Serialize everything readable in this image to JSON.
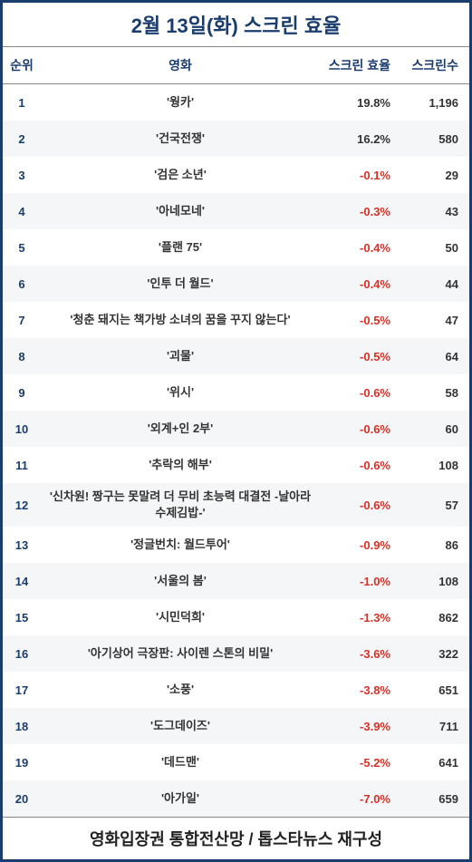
{
  "title": "2월 13일(화) 스크린 효율",
  "columns": {
    "rank": "순위",
    "movie": "영화",
    "efficiency": "스크린 효율",
    "screens": "스크린수"
  },
  "footer": "영화입장권 통합전산망 / 톱스타뉴스 재구성",
  "colors": {
    "border": "#1a3d6d",
    "header_text": "#1a3d6d",
    "negative": "#d93025",
    "positive": "#333333",
    "stripe": "#f5f6f7",
    "background": "#ffffff"
  },
  "column_widths": {
    "rank": 42,
    "efficiency": 90,
    "screens": 75
  },
  "rows": [
    {
      "rank": "1",
      "movie": "'웡카'",
      "efficiency": "19.8%",
      "screens": "1,196",
      "negative": false
    },
    {
      "rank": "2",
      "movie": "'건국전쟁'",
      "efficiency": "16.2%",
      "screens": "580",
      "negative": false
    },
    {
      "rank": "3",
      "movie": "'검은 소년'",
      "efficiency": "-0.1%",
      "screens": "29",
      "negative": true
    },
    {
      "rank": "4",
      "movie": "'아네모네'",
      "efficiency": "-0.3%",
      "screens": "43",
      "negative": true
    },
    {
      "rank": "5",
      "movie": "'플랜 75'",
      "efficiency": "-0.4%",
      "screens": "50",
      "negative": true
    },
    {
      "rank": "6",
      "movie": "'인투 더 월드'",
      "efficiency": "-0.4%",
      "screens": "44",
      "negative": true
    },
    {
      "rank": "7",
      "movie": "'청춘 돼지는 책가방 소녀의 꿈을 꾸지 않는다'",
      "efficiency": "-0.5%",
      "screens": "47",
      "negative": true
    },
    {
      "rank": "8",
      "movie": "'괴물'",
      "efficiency": "-0.5%",
      "screens": "64",
      "negative": true
    },
    {
      "rank": "9",
      "movie": "'위시'",
      "efficiency": "-0.6%",
      "screens": "58",
      "negative": true
    },
    {
      "rank": "10",
      "movie": "'외계+인 2부'",
      "efficiency": "-0.6%",
      "screens": "60",
      "negative": true
    },
    {
      "rank": "11",
      "movie": "'추락의 해부'",
      "efficiency": "-0.6%",
      "screens": "108",
      "negative": true
    },
    {
      "rank": "12",
      "movie": "'신차원! 짱구는 못말려 더 무비 초능력 대결전 -날아라 수제김밥-'",
      "efficiency": "-0.6%",
      "screens": "57",
      "negative": true
    },
    {
      "rank": "13",
      "movie": "'정글번치: 월드투어'",
      "efficiency": "-0.9%",
      "screens": "86",
      "negative": true
    },
    {
      "rank": "14",
      "movie": "'서울의 봄'",
      "efficiency": "-1.0%",
      "screens": "108",
      "negative": true
    },
    {
      "rank": "15",
      "movie": "'시민덕희'",
      "efficiency": "-1.3%",
      "screens": "862",
      "negative": true
    },
    {
      "rank": "16",
      "movie": "'아기상어 극장판: 사이렌 스톤의 비밀'",
      "efficiency": "-3.6%",
      "screens": "322",
      "negative": true
    },
    {
      "rank": "17",
      "movie": "'소풍'",
      "efficiency": "-3.8%",
      "screens": "651",
      "negative": true
    },
    {
      "rank": "18",
      "movie": "'도그데이즈'",
      "efficiency": "-3.9%",
      "screens": "711",
      "negative": true
    },
    {
      "rank": "19",
      "movie": "'데드맨'",
      "efficiency": "-5.2%",
      "screens": "641",
      "negative": true
    },
    {
      "rank": "20",
      "movie": "'아가일'",
      "efficiency": "-7.0%",
      "screens": "659",
      "negative": true
    }
  ]
}
